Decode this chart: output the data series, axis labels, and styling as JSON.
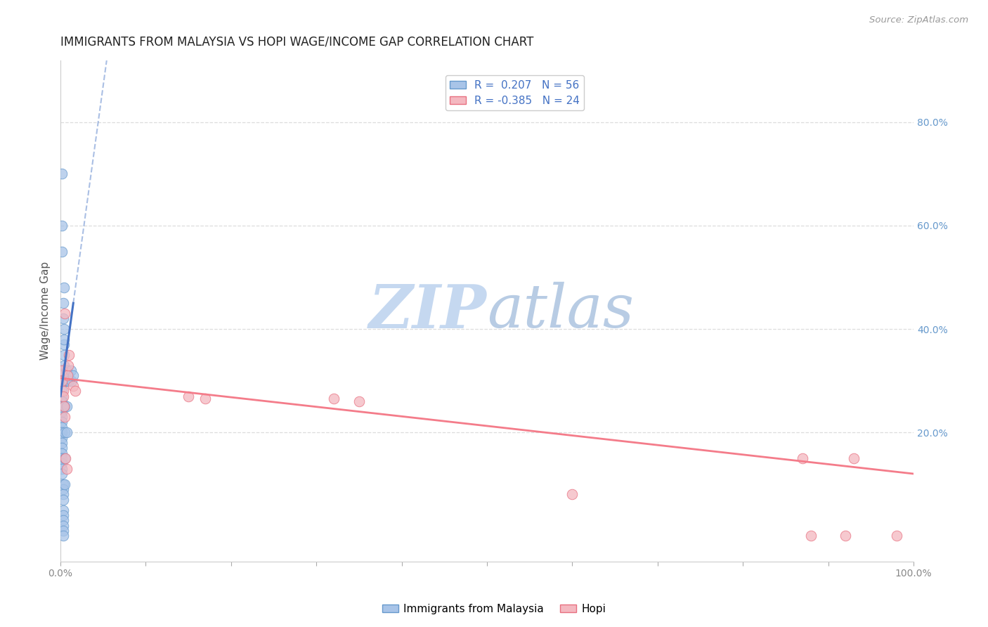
{
  "title": "IMMIGRANTS FROM MALAYSIA VS HOPI WAGE/INCOME GAP CORRELATION CHART",
  "source": "Source: ZipAtlas.com",
  "ylabel": "Wage/Income Gap",
  "ytick_labels": [
    "20.0%",
    "40.0%",
    "60.0%",
    "80.0%"
  ],
  "ytick_values": [
    0.2,
    0.4,
    0.6,
    0.8
  ],
  "xlim": [
    0.0,
    1.0
  ],
  "ylim": [
    -0.05,
    0.92
  ],
  "blue_R": 0.207,
  "blue_N": 56,
  "pink_R": -0.385,
  "pink_N": 24,
  "blue_scatter_x": [
    0.002,
    0.002,
    0.002,
    0.002,
    0.002,
    0.002,
    0.002,
    0.002,
    0.002,
    0.002,
    0.002,
    0.002,
    0.002,
    0.002,
    0.002,
    0.002,
    0.002,
    0.002,
    0.002,
    0.002,
    0.003,
    0.003,
    0.003,
    0.003,
    0.003,
    0.003,
    0.003,
    0.003,
    0.003,
    0.003,
    0.004,
    0.004,
    0.004,
    0.004,
    0.004,
    0.005,
    0.005,
    0.005,
    0.005,
    0.005,
    0.007,
    0.007,
    0.007,
    0.007,
    0.008,
    0.009,
    0.01,
    0.012,
    0.013,
    0.015,
    0.002,
    0.002,
    0.002,
    0.003,
    0.003,
    0.004
  ],
  "blue_scatter_y": [
    0.3,
    0.31,
    0.32,
    0.28,
    0.27,
    0.26,
    0.25,
    0.24,
    0.23,
    0.22,
    0.21,
    0.2,
    0.19,
    0.18,
    0.17,
    0.16,
    0.15,
    0.14,
    0.13,
    0.12,
    0.1,
    0.09,
    0.08,
    0.07,
    0.05,
    0.04,
    0.03,
    0.02,
    0.01,
    0.0,
    0.33,
    0.35,
    0.37,
    0.38,
    0.4,
    0.3,
    0.25,
    0.2,
    0.15,
    0.1,
    0.3,
    0.25,
    0.2,
    0.32,
    0.3,
    0.31,
    0.3,
    0.32,
    0.3,
    0.31,
    0.6,
    0.55,
    0.7,
    0.42,
    0.45,
    0.48
  ],
  "pink_scatter_x": [
    0.002,
    0.002,
    0.003,
    0.003,
    0.004,
    0.005,
    0.006,
    0.007,
    0.008,
    0.009,
    0.01,
    0.015,
    0.017,
    0.15,
    0.17,
    0.32,
    0.35,
    0.6,
    0.87,
    0.88,
    0.92,
    0.93,
    0.98,
    0.005
  ],
  "pink_scatter_y": [
    0.32,
    0.3,
    0.28,
    0.27,
    0.25,
    0.23,
    0.15,
    0.13,
    0.31,
    0.33,
    0.35,
    0.29,
    0.28,
    0.27,
    0.265,
    0.265,
    0.26,
    0.08,
    0.15,
    0.0,
    0.0,
    0.15,
    0.0,
    0.43
  ],
  "blue_line_color": "#4472c4",
  "pink_line_color": "#f47c8a",
  "blue_dot_color": "#a8c4e8",
  "pink_dot_color": "#f4b8c0",
  "blue_dot_edge": "#6699cc",
  "pink_dot_edge": "#e87080",
  "watermark_color": "#dde8f5",
  "background_color": "#ffffff",
  "grid_color": "#dddddd"
}
